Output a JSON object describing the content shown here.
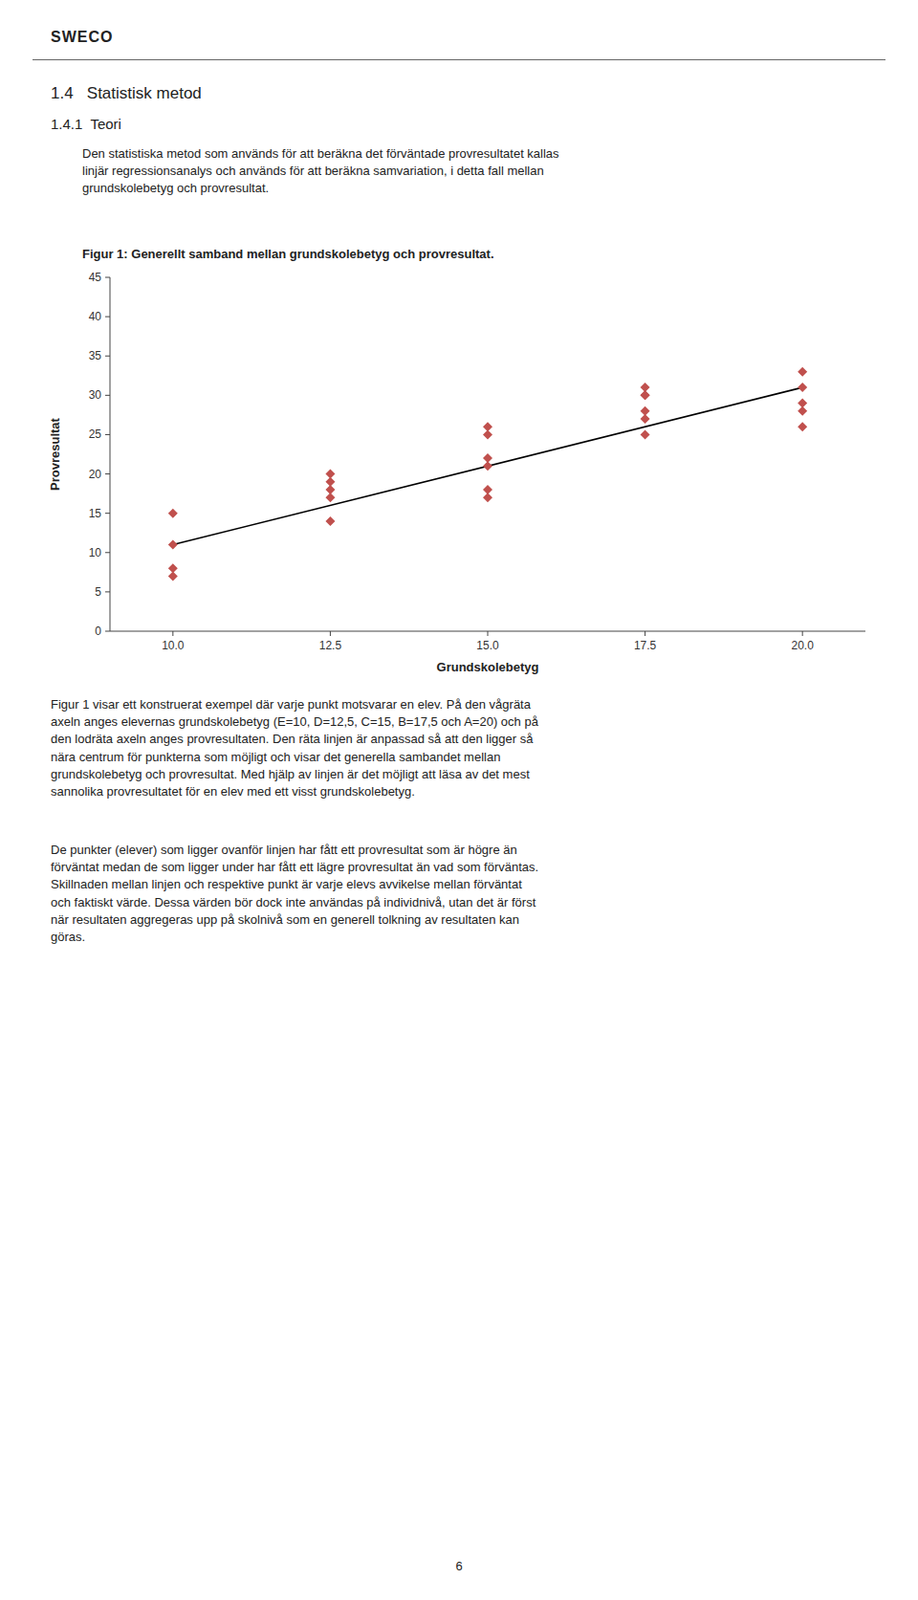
{
  "page": {
    "logo": "SWECO",
    "section_heading": "1.4   Statistisk metod",
    "sub_heading": "1.4.1  Teori",
    "paragraphs": [
      "Den statistiska metod som används för att beräkna det förväntade provresultatet kallas\nlinjär regressionsanalys och används för att beräkna samvariation, i detta fall mellan\ngrundskolebetyg och provresultat.",
      "Figur 1 visar ett konstruerat exempel där varje punkt motsvarar en elev. På den vågräta\naxeln anges elevernas grundskolebetyg (E=10, D=12,5, C=15, B=17,5 och A=20) och på\nden lodräta axeln anges provresultaten. Den räta linjen är anpassad så att den ligger så\nnära centrum för punkterna som möjligt och visar det generella sambandet mellan\ngrundskolebetyg och provresultat. Med hjälp av linjen är det möjligt att läsa av det mest\nsannolika provresultatet för en elev med ett visst grundskolebetyg.",
      "De punkter (elever) som ligger ovanför linjen har fått ett provresultat som är högre än\nförväntat medan de som ligger under har fått ett lägre provresultat än vad som förväntas.\nSkillnaden mellan linjen och respektive punkt är varje elevs avvikelse mellan förväntat\noch faktiskt värde. Dessa värden bör dock inte användas på individnivå, utan det är först\nnär resultaten aggregeras upp på skolnivå som en generell tolkning av resultaten kan\ngöras."
    ],
    "page_number": "6"
  },
  "chart_data": {
    "type": "scatter",
    "title": "Figur 1: Generellt samband mellan grundskolebetyg och provresultat.",
    "xlabel": "Grundskolebetyg",
    "ylabel": "Provresultat",
    "xlim": [
      9.0,
      21.0
    ],
    "ylim": [
      0,
      45
    ],
    "xticks": [
      {
        "value": 10,
        "label": "10.0"
      },
      12.5,
      {
        "value": 15,
        "label": "15.0"
      },
      17.5,
      {
        "value": 20,
        "label": "20.0"
      }
    ],
    "yticks": [
      0,
      5,
      10,
      15,
      20,
      25,
      30,
      35,
      40,
      45
    ],
    "grid": false,
    "series": [
      {
        "type": "scatter",
        "marker": "diamond",
        "color": "#C0504D",
        "x": [
          10,
          10,
          10,
          10,
          12.5,
          12.5,
          12.5,
          12.5,
          12.5,
          15,
          15,
          15,
          15,
          15,
          15,
          17.5,
          17.5,
          17.5,
          17.5,
          17.5,
          17.5,
          20,
          20,
          20,
          20,
          20
        ],
        "values": [
          15,
          11,
          8,
          7,
          20,
          19,
          18,
          17,
          14,
          26,
          25,
          22,
          21,
          18,
          17,
          31,
          30,
          30,
          28,
          27,
          25,
          33,
          31,
          29,
          28,
          26
        ]
      },
      {
        "type": "line",
        "color": "#000000",
        "x": [
          10,
          20
        ],
        "values": [
          11,
          31
        ]
      }
    ]
  }
}
